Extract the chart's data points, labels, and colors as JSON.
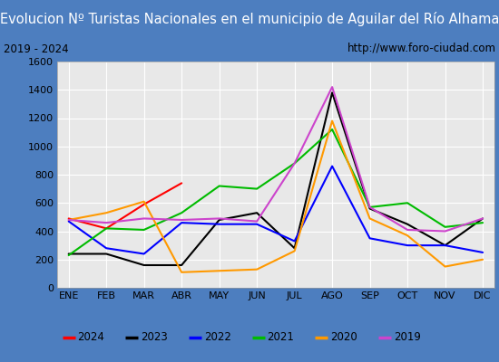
{
  "title": "Evolucion Nº Turistas Nacionales en el municipio de Aguilar del Río Alhama",
  "subtitle_left": "2019 - 2024",
  "subtitle_right": "http://www.foro-ciudad.com",
  "x_labels": [
    "ENE",
    "FEB",
    "MAR",
    "ABR",
    "MAY",
    "JUN",
    "JUL",
    "AGO",
    "SEP",
    "OCT",
    "NOV",
    "DIC"
  ],
  "ylim": [
    0,
    1600
  ],
  "yticks": [
    0,
    200,
    400,
    600,
    800,
    1000,
    1200,
    1400,
    1600
  ],
  "series": {
    "2024": {
      "color": "#ff0000",
      "data": [
        490,
        420,
        590,
        740,
        null,
        null,
        null,
        null,
        null,
        null,
        null,
        null
      ]
    },
    "2023": {
      "color": "#000000",
      "data": [
        240,
        240,
        160,
        160,
        480,
        530,
        280,
        1380,
        560,
        450,
        300,
        490
      ]
    },
    "2022": {
      "color": "#0000ff",
      "data": [
        470,
        280,
        240,
        460,
        450,
        450,
        330,
        860,
        350,
        300,
        300,
        250
      ]
    },
    "2021": {
      "color": "#00bb00",
      "data": [
        230,
        420,
        410,
        530,
        720,
        700,
        880,
        1120,
        570,
        600,
        430,
        460
      ]
    },
    "2020": {
      "color": "#ff9900",
      "data": [
        480,
        530,
        610,
        110,
        120,
        130,
        260,
        1180,
        490,
        370,
        150,
        200
      ]
    },
    "2019": {
      "color": "#cc44cc",
      "data": [
        480,
        460,
        490,
        480,
        490,
        470,
        880,
        1420,
        570,
        410,
        400,
        490
      ]
    }
  },
  "title_bg": "#4d7ebf",
  "title_color": "#ffffff",
  "title_fontsize": 10.5,
  "plot_bg": "#e8e8e8",
  "grid_color": "#ffffff",
  "legend_order": [
    "2024",
    "2023",
    "2022",
    "2021",
    "2020",
    "2019"
  ],
  "fig_width": 5.5,
  "fig_height": 4.0
}
